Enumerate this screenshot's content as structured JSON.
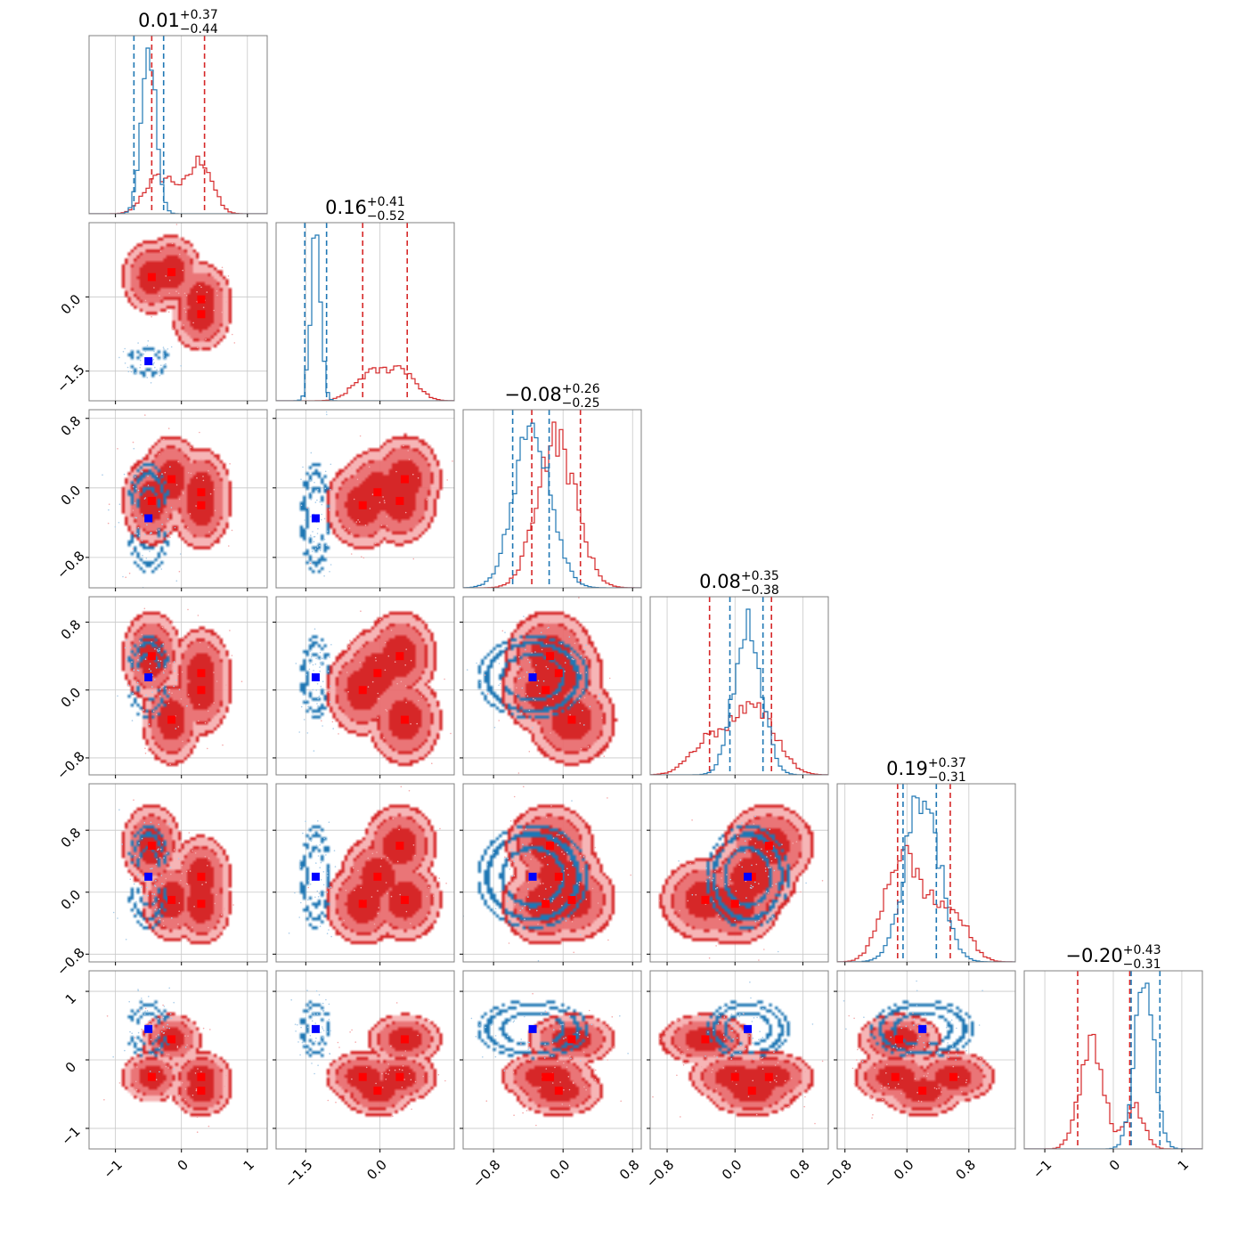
{
  "colors": {
    "red": "#d62728",
    "red_fill_outer": "#f4a9aa",
    "red_fill_mid": "#e8696b",
    "red_fill_inner": "#d62728",
    "blue": "#1f77b4",
    "blue_marker": "#0000ff",
    "red_marker": "#ff0000",
    "grid": "#c8c8c8"
  },
  "chart_data": {
    "type": "corner",
    "n_params": 6,
    "grid": true,
    "titles": [
      {
        "median": "0.01",
        "plus": "+0.37",
        "minus": "−0.44"
      },
      {
        "median": "0.16",
        "plus": "+0.41",
        "minus": "−0.52"
      },
      {
        "median": "−0.08",
        "plus": "+0.26",
        "minus": "−0.25"
      },
      {
        "median": "0.08",
        "plus": "+0.35",
        "minus": "−0.38"
      },
      {
        "median": "0.19",
        "plus": "+0.37",
        "minus": "−0.31"
      },
      {
        "median": "−0.20",
        "plus": "+0.43",
        "minus": "−0.31"
      }
    ],
    "axes": [
      {
        "range": [
          -1.4,
          1.3
        ],
        "ticks": [
          -1,
          0,
          1
        ],
        "tick_labels": [
          "−1",
          "0",
          "1"
        ]
      },
      {
        "range": [
          -2.1,
          1.5
        ],
        "ticks": [
          -1.5,
          0.0
        ],
        "tick_labels": [
          "−1.5",
          "0.0"
        ]
      },
      {
        "range": [
          -1.15,
          0.9
        ],
        "ticks": [
          -0.8,
          0.0,
          0.8
        ],
        "tick_labels": [
          "−0.8",
          "0.0",
          "0.8"
        ]
      },
      {
        "range": [
          -1.0,
          1.1
        ],
        "ticks": [
          -0.8,
          0.0,
          0.8
        ],
        "tick_labels": [
          "−0.8",
          "0.0",
          "0.8"
        ]
      },
      {
        "range": [
          -0.9,
          1.4
        ],
        "ticks": [
          -0.8,
          0.0,
          0.8
        ],
        "tick_labels": [
          "−0.8",
          "0.0",
          "0.8"
        ]
      },
      {
        "range": [
          -1.3,
          1.3
        ],
        "ticks": [
          -1,
          0,
          1
        ],
        "tick_labels": [
          "−1",
          "0",
          "1"
        ]
      }
    ],
    "series": [
      {
        "color": "red",
        "clusters": [
          [
            -0.45,
            0.4,
            -0.15,
            0.4,
            0.6,
            -0.25
          ],
          [
            -0.15,
            0.5,
            0.1,
            -0.35,
            -0.1,
            0.3
          ],
          [
            0.3,
            -0.05,
            -0.05,
            0.2,
            0.2,
            -0.45
          ],
          [
            0.3,
            -0.35,
            -0.2,
            0.0,
            -0.15,
            -0.25
          ]
        ],
        "spread": [
          0.17,
          0.28,
          0.19,
          0.2,
          0.2,
          0.14
        ],
        "quantiles": [
          [
            -0.45,
            0.35
          ],
          [
            -0.35,
            0.55
          ],
          [
            -0.36,
            0.2
          ],
          [
            -0.3,
            0.43
          ],
          [
            -0.12,
            0.56
          ],
          [
            -0.52,
            0.24
          ]
        ]
      },
      {
        "color": "blue",
        "clusters": [
          [
            -0.5,
            -1.3,
            -0.35,
            0.15,
            0.2,
            0.45
          ]
        ],
        "spread": [
          0.11,
          0.1,
          0.21,
          0.16,
          0.22,
          0.14
        ],
        "quantiles": [
          [
            -0.72,
            -0.27
          ],
          [
            -1.52,
            -1.08
          ],
          [
            -0.58,
            -0.16
          ],
          [
            -0.06,
            0.33
          ],
          [
            -0.05,
            0.38
          ],
          [
            0.26,
            0.68
          ]
        ]
      }
    ]
  }
}
